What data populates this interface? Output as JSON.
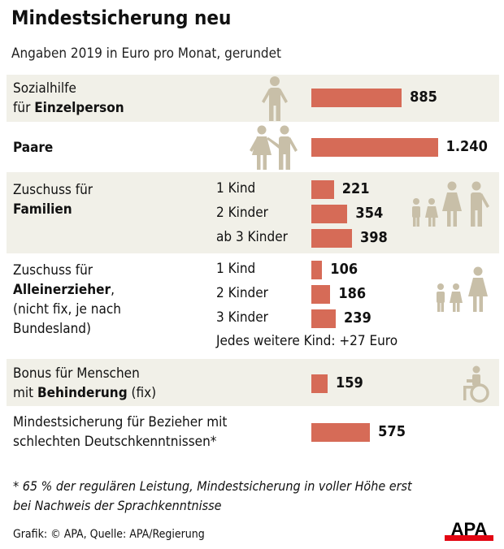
{
  "title": "Mindestsicherung neu",
  "subtitle": "Angaben 2019 in Euro pro Monat, gerundet",
  "colors": {
    "bar": "#d66b57",
    "band": "#f1f0e8",
    "icon": "#c8bfa8",
    "logo_red": "#e30613"
  },
  "chart_data": {
    "type": "bar",
    "orientation": "horizontal",
    "title": "Mindestsicherung neu",
    "subtitle": "Angaben 2019 in Euro pro Monat, gerundet",
    "groups": [
      {
        "label_pre": "Sozialhilfe",
        "label_mid": "für ",
        "label_bold": "Einzelperson",
        "items": [
          {
            "label": "",
            "value": 885,
            "display": "885"
          }
        ]
      },
      {
        "label_bold": "Paare",
        "items": [
          {
            "label": "",
            "value": 1240,
            "display": "1.240"
          }
        ]
      },
      {
        "label_pre": "Zuschuss für",
        "label_bold": "Familien",
        "items": [
          {
            "label": "1 Kind",
            "value": 221,
            "display": "221"
          },
          {
            "label": "2 Kinder",
            "value": 354,
            "display": "354"
          },
          {
            "label": "ab 3 Kinder",
            "value": 398,
            "display": "398"
          }
        ]
      },
      {
        "label_pre": "Zuschuss für",
        "label_bold": "Alleinerzieher",
        "label_post": ",",
        "label_extra1": "(nicht fix, je nach",
        "label_extra2": "Bundesland)",
        "items": [
          {
            "label": "1 Kind",
            "value": 106,
            "display": "106"
          },
          {
            "label": "2 Kinder",
            "value": 186,
            "display": "186"
          },
          {
            "label": "3 Kinder",
            "value": 239,
            "display": "239"
          }
        ],
        "note": "Jedes weitere Kind: +27 Euro"
      },
      {
        "label_pre": "Bonus für Menschen",
        "label_mid": "mit ",
        "label_bold": "Behinderung",
        "label_post": " (fix)",
        "items": [
          {
            "label": "",
            "value": 159,
            "display": "159"
          }
        ]
      },
      {
        "label_pre": "Mindestsicherung für Bezieher mit",
        "label_mid": "schlechten Deutschkenntnissen*",
        "items": [
          {
            "label": "",
            "value": 575,
            "display": "575"
          }
        ]
      }
    ]
  },
  "icons": [
    "person-icon",
    "couple-icon",
    "family-icon",
    "single-parent-icon",
    "wheelchair-icon"
  ],
  "footnote1": "* 65 % der regulären Leistung, Mindestsicherung in voller Höhe erst",
  "footnote2": "bei Nachweis der Sprachkenntnisse",
  "source": "Grafik: © APA, Quelle: APA/Regierung",
  "logo": "APA"
}
